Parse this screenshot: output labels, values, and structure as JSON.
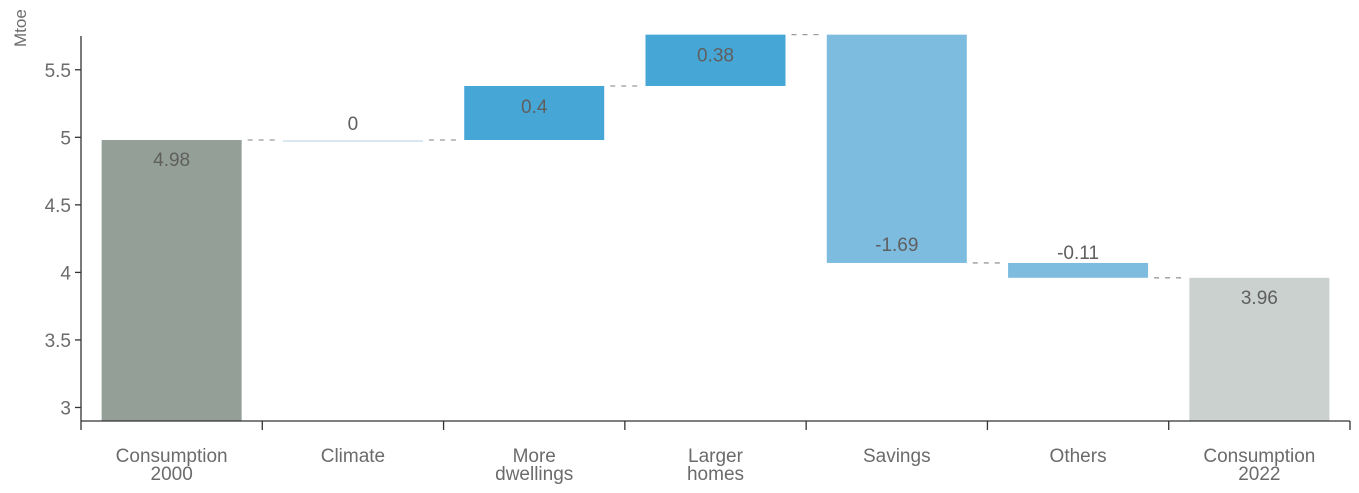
{
  "chart_data": {
    "type": "bar",
    "subtype": "waterfall",
    "ylabel": "Mtoe",
    "ylim": [
      2.9,
      5.75
    ],
    "yticks": [
      "3",
      "3.5",
      "4",
      "4.5",
      "5",
      "5.5"
    ],
    "grid": false,
    "legend": "none",
    "categories": [
      [
        "Consumption",
        "2000"
      ],
      [
        "Climate"
      ],
      [
        "More",
        "dwellings"
      ],
      [
        "Larger",
        "homes"
      ],
      [
        "Savings"
      ],
      [
        "Others"
      ],
      [
        "Consumption",
        "2022"
      ]
    ],
    "values": [
      4.98,
      0,
      0.4,
      0.38,
      -1.69,
      -0.11,
      3.96
    ],
    "value_labels": [
      "4.98",
      "0",
      "0.4",
      "0.38",
      "-1.69",
      "-0.11",
      "3.96"
    ],
    "kinds": [
      "total",
      "delta",
      "delta",
      "delta",
      "delta",
      "delta",
      "total"
    ],
    "colors": {
      "total_start": "#949f97",
      "increase": "#46a7d7",
      "decrease": "#7dbcdf",
      "total_end": "#cbd1ce",
      "zero": "#d9e7ef"
    }
  }
}
